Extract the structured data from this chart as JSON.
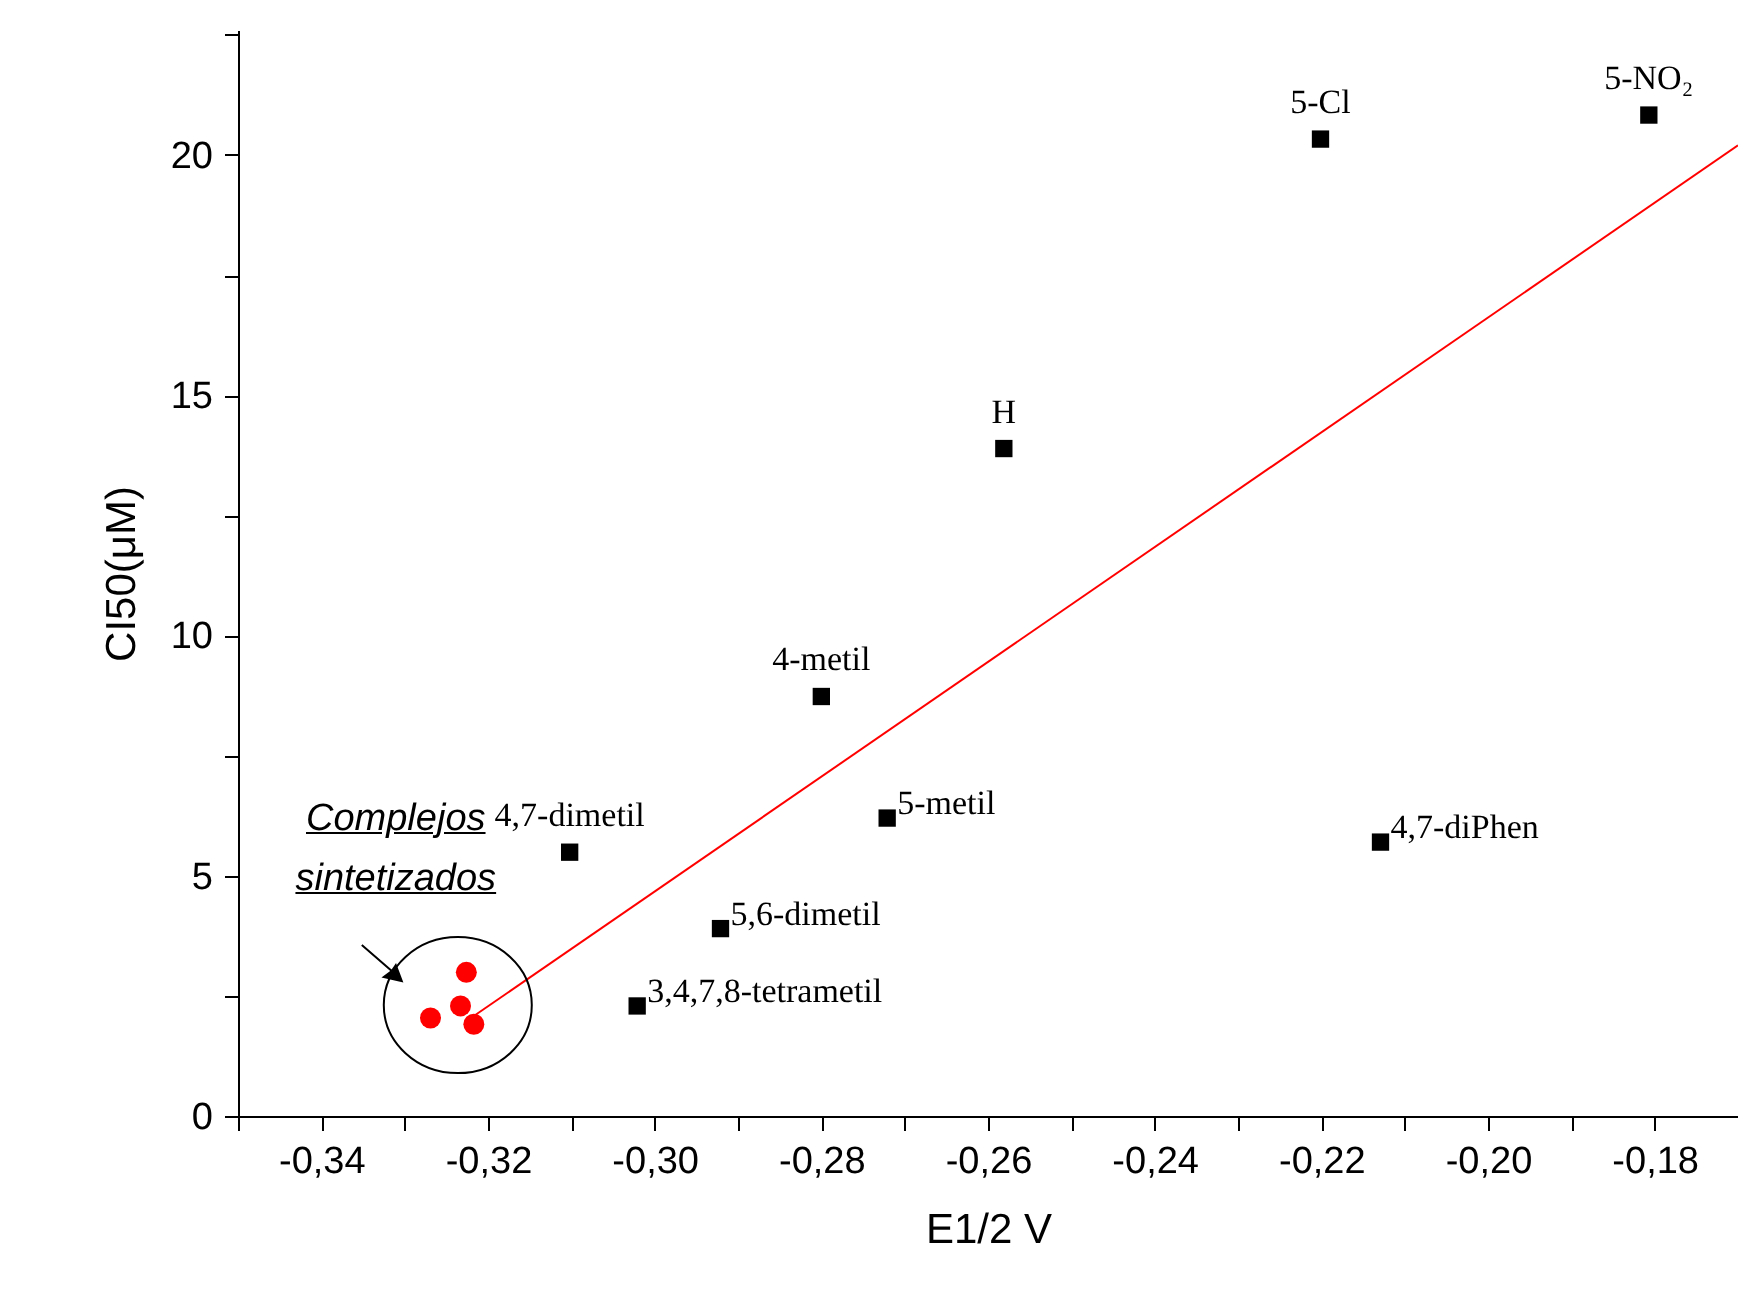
{
  "chart_data": {
    "type": "scatter",
    "xlabel": "E1/2 V",
    "ylabel": "CI50(μM)",
    "xlim": [
      -0.35,
      -0.17
    ],
    "ylim": [
      0,
      22.6
    ],
    "xticks": [
      {
        "value": -0.35,
        "label": null
      },
      {
        "value": -0.34,
        "label": "-0,34"
      },
      {
        "value": -0.33,
        "label": null
      },
      {
        "value": -0.32,
        "label": "-0,32"
      },
      {
        "value": -0.31,
        "label": null
      },
      {
        "value": -0.3,
        "label": "-0,30"
      },
      {
        "value": -0.29,
        "label": null
      },
      {
        "value": -0.28,
        "label": "-0,28"
      },
      {
        "value": -0.27,
        "label": null
      },
      {
        "value": -0.26,
        "label": "-0,26"
      },
      {
        "value": -0.25,
        "label": null
      },
      {
        "value": -0.24,
        "label": "-0,24"
      },
      {
        "value": -0.23,
        "label": null
      },
      {
        "value": -0.22,
        "label": "-0,22"
      },
      {
        "value": -0.21,
        "label": null
      },
      {
        "value": -0.2,
        "label": "-0,20"
      },
      {
        "value": -0.19,
        "label": null
      },
      {
        "value": -0.18,
        "label": "-0,18"
      },
      {
        "value": -0.17,
        "label": null
      }
    ],
    "yticks": [
      0,
      {
        "value": 2.5,
        "label": null
      },
      5,
      {
        "value": 7.5,
        "label": null
      },
      10,
      {
        "value": 12.5,
        "label": null
      },
      15,
      {
        "value": 17.5,
        "label": null
      },
      20,
      {
        "value": 22.5,
        "label": null
      }
    ],
    "grid": false,
    "series": [
      {
        "marker": "square",
        "color": "#000000",
        "x": [
          -0.2201,
          -0.1807,
          -0.2581,
          -0.28,
          -0.2721,
          -0.2129,
          -0.3102,
          -0.2921,
          -0.3021
        ],
        "values": [
          20.33,
          20.83,
          13.89,
          8.73,
          6.2,
          5.7,
          5.49,
          3.9,
          2.29
        ]
      },
      {
        "marker": "circle",
        "color": "#ff0000",
        "x": [
          -0.3269,
          -0.3233,
          -0.3226,
          -0.3217
        ],
        "values": [
          2.04,
          2.29,
          2.99,
          1.91
        ]
      },
      {
        "type": "line",
        "color": "#ff0000",
        "x": [
          -0.3217,
          -0.17
        ],
        "values": [
          2.08,
          20.2
        ]
      }
    ],
    "annotations": [
      {
        "text": "5-Cl",
        "x": -0.2201,
        "y": 20.33
      },
      {
        "text": "5-NO₂",
        "x": -0.1807,
        "y": 20.83
      },
      {
        "text": "H",
        "x": -0.2581,
        "y": 13.89
      },
      {
        "text": "4-metil",
        "x": -0.28,
        "y": 8.73
      },
      {
        "text": "5-metil",
        "x": -0.2721,
        "y": 6.2
      },
      {
        "text": "4,7-diPhen",
        "x": -0.2129,
        "y": 5.7
      },
      {
        "text": "4,7-dimetil",
        "x": -0.3102,
        "y": 5.49
      },
      {
        "text": "5,6-dimetil",
        "x": -0.2921,
        "y": 3.9
      },
      {
        "text": "3,4,7,8-tetrametil",
        "x": -0.3021,
        "y": 2.29
      },
      "Complejos sintetizados"
    ]
  }
}
